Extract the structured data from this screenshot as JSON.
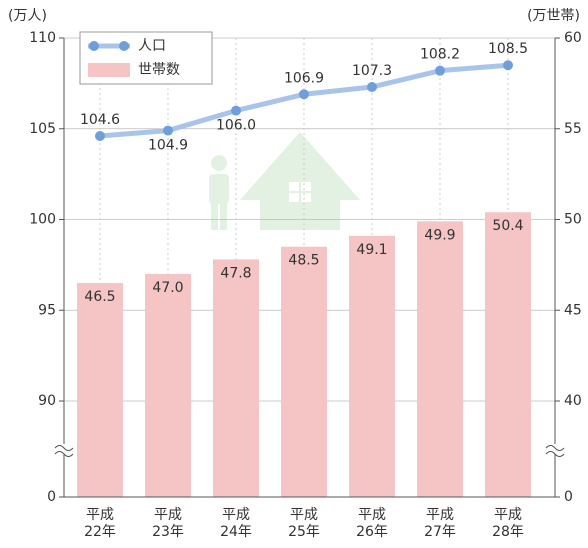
{
  "chart_data": {
    "type": "bar_line",
    "y_label": "(万人)",
    "y2_label": "(万世帯)",
    "categories": [
      "平成\n22年",
      "平成\n23年",
      "平成\n24年",
      "平成\n25年",
      "平成\n26年",
      "平成\n27年",
      "平成\n28年"
    ],
    "series": [
      {
        "name": "人口",
        "type": "line",
        "color": "#a9c4ea",
        "marker_color": "#6e9fdc",
        "axis": "y",
        "values": [
          104.6,
          104.9,
          106.0,
          106.9,
          107.3,
          108.2,
          108.5
        ],
        "value_labels": [
          "104.6",
          "104.9",
          "106.0",
          "106.9",
          "107.3",
          "108.2",
          "108.5"
        ]
      },
      {
        "name": "世帯数",
        "type": "bar",
        "color": "#f5c5c6",
        "axis": "y2",
        "values": [
          46.5,
          47.0,
          47.8,
          48.5,
          49.1,
          49.9,
          50.4
        ],
        "value_labels": [
          "46.5",
          "47.0",
          "47.8",
          "48.5",
          "49.1",
          "49.9",
          "50.4"
        ]
      }
    ],
    "ylim": [
      0,
      110
    ],
    "yticks": [
      0,
      90,
      95,
      100,
      105,
      110
    ],
    "y2lim": [
      0,
      60
    ],
    "y2ticks": [
      0,
      40,
      45,
      50,
      55,
      60
    ],
    "axis_break": true,
    "grid": true,
    "legend": "top-left"
  }
}
